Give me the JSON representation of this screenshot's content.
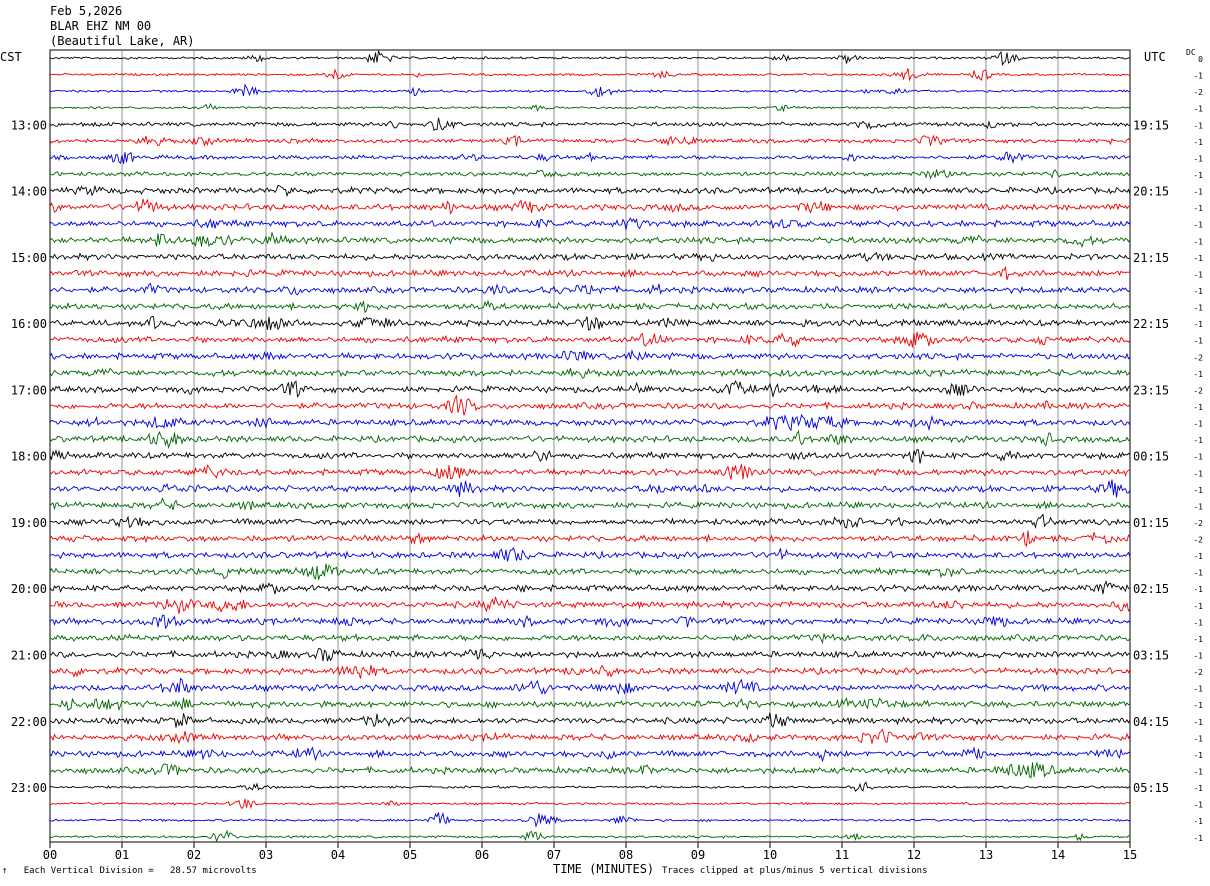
{
  "header": {
    "date": "Feb 5,2026",
    "station": "BLAR EHZ NM 00",
    "location": "(Beautiful Lake, AR)"
  },
  "timezones": {
    "left": "CST",
    "right": "UTC"
  },
  "dc_label": "DC",
  "footer": {
    "corner_mark": "↑",
    "scale": "Each Vertical Division =   28.57 microvolts",
    "xlabel": "TIME (MINUTES)",
    "clip_note": "Traces clipped at plus/minus 5 vertical divisions"
  },
  "colors": {
    "trace_cycle": [
      "#000000",
      "#ee0000",
      "#0000dd",
      "#006600"
    ],
    "grid": "#777777"
  },
  "chart_data": {
    "type": "line",
    "title": "Feb 5,2026  BLAR EHZ NM 00 (Beautiful Lake, AR)",
    "xlabel": "TIME (MINUTES)",
    "xlim": [
      0,
      15
    ],
    "x_ticks": [
      "00",
      "01",
      "02",
      "03",
      "04",
      "05",
      "06",
      "07",
      "08",
      "09",
      "10",
      "11",
      "12",
      "13",
      "14",
      "15"
    ],
    "row_interval_minutes": 15,
    "row_count": 48,
    "left_hour_labels": [
      "13:00",
      "14:00",
      "15:00",
      "16:00",
      "17:00",
      "18:00",
      "19:00",
      "20:00",
      "21:00",
      "22:00",
      "23:00"
    ],
    "right_hour_labels": [
      "19:15",
      "20:15",
      "21:15",
      "22:15",
      "23:15",
      "00:15",
      "01:15",
      "02:15",
      "03:15",
      "04:15",
      "05:15"
    ],
    "hour_label_first_row": 4,
    "dc_offsets": [
      "0",
      "-1",
      "-2",
      "-1",
      "-1",
      "-1",
      "-1",
      "-1",
      "-1",
      "-1",
      "-1",
      "-1",
      "-1",
      "-1",
      "-1",
      "-1",
      "-1",
      "-1",
      "-2",
      "-1",
      "-2",
      "-1",
      "-1",
      "-1",
      "-1",
      "-1",
      "-1",
      "-1",
      "-2",
      "-2",
      "-1",
      "-1",
      "-1",
      "-1",
      "-1",
      "-1",
      "-1",
      "-2",
      "-1",
      "-1",
      "-1",
      "-1",
      "-1",
      "-1",
      "-1",
      "-1",
      "-1",
      "-1"
    ],
    "grid": true
  }
}
